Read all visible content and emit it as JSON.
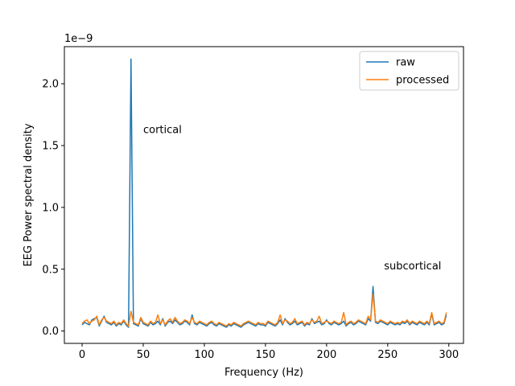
{
  "chart_data": {
    "type": "line",
    "title": "",
    "xlabel": "Frequency (Hz)",
    "ylabel": "EEG Power spectral density",
    "y_offset_label": "1e−9",
    "xlim": [
      -14.5,
      312
    ],
    "ylim": [
      -0.1,
      2.3
    ],
    "xticks": [
      0,
      50,
      100,
      150,
      200,
      250,
      300
    ],
    "xtick_labels": [
      "0",
      "50",
      "100",
      "150",
      "200",
      "250",
      "300"
    ],
    "yticks": [
      0.0,
      0.5,
      1.0,
      1.5,
      2.0
    ],
    "ytick_labels": [
      "0.0",
      "0.5",
      "1.0",
      "1.5",
      "2.0"
    ],
    "grid": false,
    "legend_position": "top-right",
    "annotations": [
      {
        "text": "cortical",
        "x": 50,
        "y": 1.6
      },
      {
        "text": "subcortical",
        "x": 247,
        "y": 0.5
      }
    ],
    "series": [
      {
        "name": "raw",
        "color": "#1f77b4",
        "x": [
          0,
          2,
          4,
          6,
          8,
          10,
          12,
          14,
          16,
          18,
          20,
          22,
          24,
          26,
          28,
          30,
          32,
          34,
          36,
          38,
          40,
          42,
          44,
          46,
          48,
          50,
          52,
          54,
          56,
          58,
          60,
          62,
          64,
          66,
          68,
          70,
          72,
          74,
          76,
          78,
          80,
          82,
          84,
          86,
          88,
          90,
          92,
          94,
          96,
          98,
          100,
          102,
          104,
          106,
          108,
          110,
          112,
          114,
          116,
          118,
          120,
          122,
          124,
          126,
          128,
          130,
          132,
          134,
          136,
          138,
          140,
          142,
          144,
          146,
          148,
          150,
          152,
          154,
          156,
          158,
          160,
          162,
          164,
          166,
          168,
          170,
          172,
          174,
          176,
          178,
          180,
          182,
          184,
          186,
          188,
          190,
          192,
          194,
          196,
          198,
          200,
          202,
          204,
          206,
          208,
          210,
          212,
          214,
          216,
          218,
          220,
          222,
          224,
          226,
          228,
          230,
          232,
          234,
          236,
          238,
          240,
          242,
          244,
          246,
          248,
          250,
          252,
          254,
          256,
          258,
          260,
          262,
          264,
          266,
          268,
          270,
          272,
          274,
          276,
          278,
          280,
          282,
          284,
          286,
          288,
          290,
          292,
          294,
          296,
          298
        ],
        "values": [
          0.05,
          0.07,
          0.06,
          0.05,
          0.09,
          0.1,
          0.11,
          0.04,
          0.08,
          0.12,
          0.07,
          0.06,
          0.05,
          0.07,
          0.04,
          0.06,
          0.05,
          0.08,
          0.05,
          0.03,
          2.2,
          0.06,
          0.05,
          0.04,
          0.1,
          0.06,
          0.05,
          0.04,
          0.07,
          0.05,
          0.06,
          0.08,
          0.05,
          0.1,
          0.04,
          0.07,
          0.08,
          0.06,
          0.09,
          0.07,
          0.05,
          0.06,
          0.08,
          0.07,
          0.05,
          0.13,
          0.06,
          0.05,
          0.07,
          0.06,
          0.05,
          0.04,
          0.06,
          0.07,
          0.05,
          0.04,
          0.06,
          0.05,
          0.04,
          0.03,
          0.05,
          0.04,
          0.06,
          0.05,
          0.04,
          0.03,
          0.05,
          0.06,
          0.07,
          0.06,
          0.05,
          0.04,
          0.06,
          0.05,
          0.05,
          0.04,
          0.07,
          0.06,
          0.05,
          0.04,
          0.06,
          0.09,
          0.05,
          0.1,
          0.07,
          0.05,
          0.06,
          0.08,
          0.05,
          0.06,
          0.07,
          0.04,
          0.06,
          0.05,
          0.1,
          0.06,
          0.07,
          0.08,
          0.05,
          0.06,
          0.09,
          0.06,
          0.05,
          0.07,
          0.06,
          0.05,
          0.06,
          0.08,
          0.04,
          0.06,
          0.07,
          0.05,
          0.06,
          0.08,
          0.07,
          0.06,
          0.05,
          0.1,
          0.08,
          0.36,
          0.07,
          0.06,
          0.08,
          0.07,
          0.06,
          0.05,
          0.07,
          0.06,
          0.05,
          0.06,
          0.05,
          0.07,
          0.06,
          0.08,
          0.05,
          0.07,
          0.06,
          0.05,
          0.07,
          0.06,
          0.05,
          0.07,
          0.05,
          0.14,
          0.05,
          0.06,
          0.07,
          0.05,
          0.06,
          0.13
        ]
      },
      {
        "name": "processed",
        "color": "#ff7f0e",
        "x": [
          0,
          2,
          4,
          6,
          8,
          10,
          12,
          14,
          16,
          18,
          20,
          22,
          24,
          26,
          28,
          30,
          32,
          34,
          36,
          38,
          40,
          42,
          44,
          46,
          48,
          50,
          52,
          54,
          56,
          58,
          60,
          62,
          64,
          66,
          68,
          70,
          72,
          74,
          76,
          78,
          80,
          82,
          84,
          86,
          88,
          90,
          92,
          94,
          96,
          98,
          100,
          102,
          104,
          106,
          108,
          110,
          112,
          114,
          116,
          118,
          120,
          122,
          124,
          126,
          128,
          130,
          132,
          134,
          136,
          138,
          140,
          142,
          144,
          146,
          148,
          150,
          152,
          154,
          156,
          158,
          160,
          162,
          164,
          166,
          168,
          170,
          172,
          174,
          176,
          178,
          180,
          182,
          184,
          186,
          188,
          190,
          192,
          194,
          196,
          198,
          200,
          202,
          204,
          206,
          208,
          210,
          212,
          214,
          216,
          218,
          220,
          222,
          224,
          226,
          228,
          230,
          232,
          234,
          236,
          238,
          240,
          242,
          244,
          246,
          248,
          250,
          252,
          254,
          256,
          258,
          260,
          262,
          264,
          266,
          268,
          270,
          272,
          274,
          276,
          278,
          280,
          282,
          284,
          286,
          288,
          290,
          292,
          294,
          296,
          298
        ],
        "values": [
          0.06,
          0.08,
          0.09,
          0.06,
          0.08,
          0.09,
          0.12,
          0.05,
          0.09,
          0.11,
          0.08,
          0.07,
          0.06,
          0.08,
          0.05,
          0.07,
          0.06,
          0.09,
          0.06,
          0.04,
          0.16,
          0.07,
          0.06,
          0.05,
          0.11,
          0.07,
          0.06,
          0.05,
          0.08,
          0.06,
          0.07,
          0.13,
          0.06,
          0.09,
          0.05,
          0.08,
          0.1,
          0.07,
          0.11,
          0.08,
          0.06,
          0.07,
          0.09,
          0.08,
          0.06,
          0.11,
          0.07,
          0.06,
          0.08,
          0.07,
          0.06,
          0.05,
          0.07,
          0.08,
          0.06,
          0.05,
          0.07,
          0.06,
          0.05,
          0.04,
          0.06,
          0.05,
          0.07,
          0.06,
          0.05,
          0.04,
          0.06,
          0.07,
          0.08,
          0.07,
          0.06,
          0.05,
          0.07,
          0.06,
          0.06,
          0.05,
          0.08,
          0.07,
          0.06,
          0.05,
          0.07,
          0.13,
          0.06,
          0.09,
          0.08,
          0.06,
          0.07,
          0.1,
          0.06,
          0.07,
          0.08,
          0.05,
          0.07,
          0.06,
          0.09,
          0.07,
          0.08,
          0.12,
          0.06,
          0.07,
          0.08,
          0.07,
          0.06,
          0.08,
          0.07,
          0.06,
          0.07,
          0.15,
          0.05,
          0.07,
          0.08,
          0.06,
          0.07,
          0.09,
          0.08,
          0.07,
          0.06,
          0.12,
          0.09,
          0.3,
          0.08,
          0.07,
          0.09,
          0.08,
          0.07,
          0.06,
          0.08,
          0.07,
          0.06,
          0.07,
          0.06,
          0.08,
          0.07,
          0.09,
          0.06,
          0.08,
          0.07,
          0.06,
          0.08,
          0.07,
          0.06,
          0.08,
          0.06,
          0.15,
          0.06,
          0.07,
          0.08,
          0.06,
          0.07,
          0.15
        ]
      }
    ]
  }
}
